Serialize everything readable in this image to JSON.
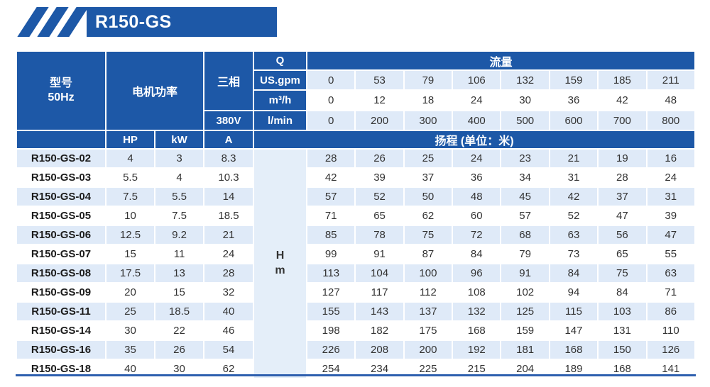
{
  "banner": {
    "title": "R150-GS"
  },
  "table": {
    "header": {
      "model_line1": "型号",
      "model_line2": "50Hz",
      "motor_power": "电机功率",
      "three_phase": "三相",
      "voltage": "380V",
      "q_label": "Q",
      "flow_label": "流量",
      "unit_usgpm": "US.gpm",
      "unit_m3h": "m³/h",
      "unit_lmin": "l/min",
      "hp": "HP",
      "kw": "kW",
      "amp": "A",
      "head_label": "扬程 (单位：米)",
      "hm_line1": "H",
      "hm_line2": "m"
    },
    "flow_values": {
      "usgpm": [
        "0",
        "53",
        "79",
        "106",
        "132",
        "159",
        "185",
        "211"
      ],
      "m3h": [
        "0",
        "12",
        "18",
        "24",
        "30",
        "36",
        "42",
        "48"
      ],
      "lmin": [
        "0",
        "200",
        "300",
        "400",
        "500",
        "600",
        "700",
        "800"
      ]
    },
    "rows": [
      {
        "model": "R150-GS-02",
        "hp": "4",
        "kw": "3",
        "a": "8.3",
        "heads": [
          "28",
          "26",
          "25",
          "24",
          "23",
          "21",
          "19",
          "16"
        ]
      },
      {
        "model": "R150-GS-03",
        "hp": "5.5",
        "kw": "4",
        "a": "10.3",
        "heads": [
          "42",
          "39",
          "37",
          "36",
          "34",
          "31",
          "28",
          "24"
        ]
      },
      {
        "model": "R150-GS-04",
        "hp": "7.5",
        "kw": "5.5",
        "a": "14",
        "heads": [
          "57",
          "52",
          "50",
          "48",
          "45",
          "42",
          "37",
          "31"
        ]
      },
      {
        "model": "R150-GS-05",
        "hp": "10",
        "kw": "7.5",
        "a": "18.5",
        "heads": [
          "71",
          "65",
          "62",
          "60",
          "57",
          "52",
          "47",
          "39"
        ]
      },
      {
        "model": "R150-GS-06",
        "hp": "12.5",
        "kw": "9.2",
        "a": "21",
        "heads": [
          "85",
          "78",
          "75",
          "72",
          "68",
          "63",
          "56",
          "47"
        ]
      },
      {
        "model": "R150-GS-07",
        "hp": "15",
        "kw": "11",
        "a": "24",
        "heads": [
          "99",
          "91",
          "87",
          "84",
          "79",
          "73",
          "65",
          "55"
        ]
      },
      {
        "model": "R150-GS-08",
        "hp": "17.5",
        "kw": "13",
        "a": "28",
        "heads": [
          "113",
          "104",
          "100",
          "96",
          "91",
          "84",
          "75",
          "63"
        ]
      },
      {
        "model": "R150-GS-09",
        "hp": "20",
        "kw": "15",
        "a": "32",
        "heads": [
          "127",
          "117",
          "112",
          "108",
          "102",
          "94",
          "84",
          "71"
        ]
      },
      {
        "model": "R150-GS-11",
        "hp": "25",
        "kw": "18.5",
        "a": "40",
        "heads": [
          "155",
          "143",
          "137",
          "132",
          "125",
          "115",
          "103",
          "86"
        ]
      },
      {
        "model": "R150-GS-14",
        "hp": "30",
        "kw": "22",
        "a": "46",
        "heads": [
          "198",
          "182",
          "175",
          "168",
          "159",
          "147",
          "131",
          "110"
        ]
      },
      {
        "model": "R150-GS-16",
        "hp": "35",
        "kw": "26",
        "a": "54",
        "heads": [
          "226",
          "208",
          "200",
          "192",
          "181",
          "168",
          "150",
          "126"
        ]
      },
      {
        "model": "R150-GS-18",
        "hp": "40",
        "kw": "30",
        "a": "62",
        "heads": [
          "254",
          "234",
          "225",
          "215",
          "204",
          "189",
          "168",
          "141"
        ]
      }
    ],
    "colors": {
      "header_blue": "#1d58a7",
      "row_light": "#dfeaf8",
      "row_white": "#ffffff",
      "bottom_line": "#2e5fae"
    }
  }
}
